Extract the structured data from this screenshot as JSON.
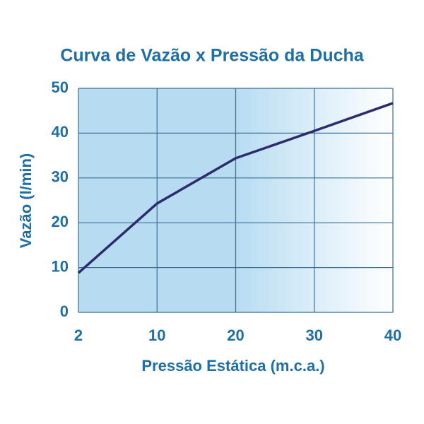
{
  "chart_data": {
    "type": "line",
    "title": "Curva de Vazão x Pressão da Ducha",
    "x_label": "Pressão Estática (m.c.a.)",
    "y_label": "Vazão (l/min)",
    "categories": [
      "2",
      "10",
      "20",
      "30",
      "40"
    ],
    "series": [
      {
        "name": "Vazão",
        "color": "#2c2b6e",
        "values": [
          8.8,
          24.3,
          34.4,
          40.5,
          46.7
        ]
      }
    ],
    "ylim": [
      0,
      50
    ],
    "yticks": [
      0,
      10,
      20,
      30,
      40,
      50
    ],
    "grid": true
  }
}
